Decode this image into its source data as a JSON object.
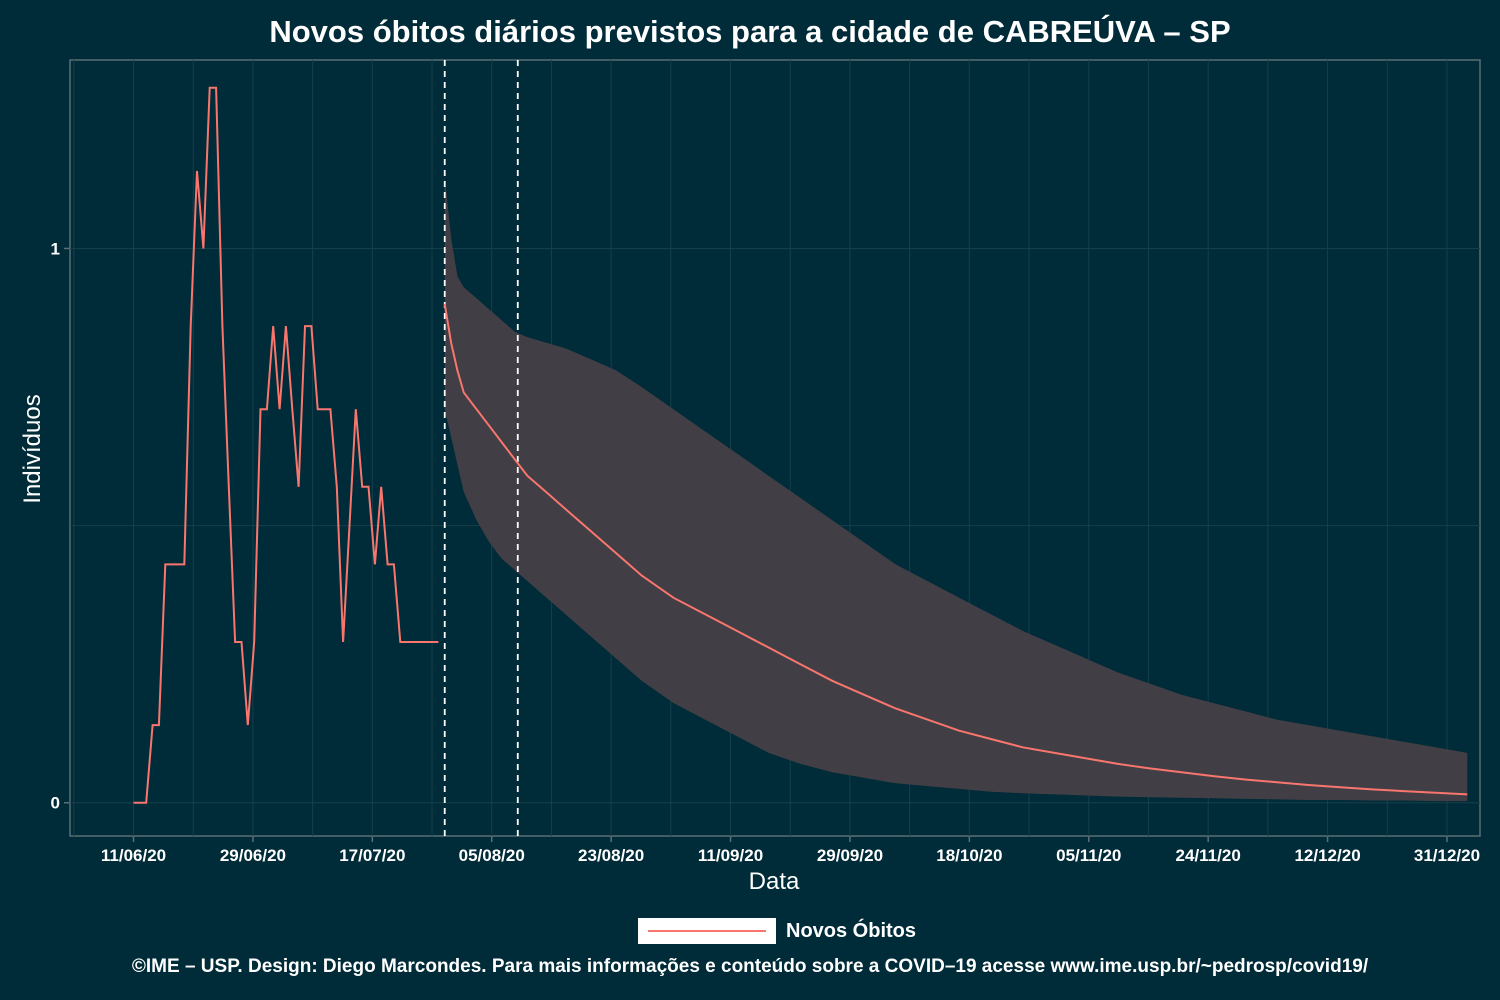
{
  "chart_data": {
    "type": "line",
    "title": "Novos óbitos diários previstos para a cidade de CABREÚVA – SP",
    "xlabel": "Data",
    "ylabel": "Indivíduos",
    "x_tick_labels": [
      "11/06/20",
      "29/06/20",
      "17/07/20",
      "05/08/20",
      "23/08/20",
      "11/09/20",
      "29/09/20",
      "18/10/20",
      "05/11/20",
      "24/11/20",
      "12/12/20",
      "31/12/20"
    ],
    "y_tick_labels": [
      "0",
      "1"
    ],
    "ylim": [
      -0.06,
      1.34
    ],
    "xlim_days": [
      -10,
      212
    ],
    "grid": true,
    "legend_position": "bottom",
    "vertical_dashed_lines_days": [
      49,
      60.5
    ],
    "series": [
      {
        "name": "Novos Óbitos",
        "color": "#f8766d",
        "observed": {
          "x_days": [
            0,
            2,
            3,
            4,
            5,
            6,
            7,
            8,
            9,
            10,
            11,
            12,
            13,
            14,
            15,
            16,
            17,
            18,
            19,
            20,
            21,
            22,
            23,
            24,
            25,
            26,
            27,
            28,
            29,
            30,
            31,
            32,
            33,
            34,
            35,
            36,
            37,
            38,
            39,
            40,
            41,
            42,
            43,
            44,
            45,
            46,
            47,
            48
          ],
          "y": [
            0,
            0,
            0.14,
            0.14,
            0.43,
            0.43,
            0.43,
            0.43,
            0.86,
            1.14,
            1.0,
            1.29,
            1.29,
            0.86,
            0.57,
            0.29,
            0.29,
            0.14,
            0.29,
            0.71,
            0.71,
            0.86,
            0.71,
            0.86,
            0.71,
            0.57,
            0.86,
            0.86,
            0.71,
            0.71,
            0.71,
            0.57,
            0.29,
            0.5,
            0.71,
            0.57,
            0.57,
            0.43,
            0.57,
            0.43,
            0.43,
            0.29,
            0.29,
            0.29,
            0.29,
            0.29,
            0.29,
            0.29
          ]
        },
        "forecast": {
          "x_days": [
            49,
            50,
            51,
            52,
            54,
            56,
            58,
            60,
            62,
            65,
            68,
            72,
            76,
            80,
            85,
            90,
            95,
            100,
            105,
            110,
            115,
            120,
            125,
            130,
            135,
            140,
            145,
            150,
            155,
            160,
            165,
            170,
            175,
            180,
            185,
            190,
            195,
            200,
            205,
            210
          ],
          "y": [
            0.9,
            0.83,
            0.78,
            0.74,
            0.71,
            0.68,
            0.65,
            0.62,
            0.59,
            0.56,
            0.53,
            0.49,
            0.45,
            0.41,
            0.37,
            0.34,
            0.31,
            0.28,
            0.25,
            0.22,
            0.195,
            0.17,
            0.15,
            0.13,
            0.115,
            0.1,
            0.09,
            0.08,
            0.07,
            0.062,
            0.055,
            0.048,
            0.042,
            0.037,
            0.032,
            0.028,
            0.024,
            0.021,
            0.018,
            0.015
          ],
          "upper": [
            1.13,
            1.02,
            0.95,
            0.93,
            0.91,
            0.89,
            0.87,
            0.85,
            0.84,
            0.83,
            0.82,
            0.8,
            0.78,
            0.75,
            0.71,
            0.67,
            0.63,
            0.59,
            0.55,
            0.51,
            0.47,
            0.43,
            0.4,
            0.37,
            0.34,
            0.31,
            0.285,
            0.26,
            0.235,
            0.215,
            0.195,
            0.18,
            0.165,
            0.15,
            0.14,
            0.13,
            0.12,
            0.11,
            0.1,
            0.09
          ],
          "lower": [
            0.71,
            0.66,
            0.61,
            0.56,
            0.51,
            0.47,
            0.44,
            0.42,
            0.4,
            0.37,
            0.34,
            0.3,
            0.26,
            0.22,
            0.18,
            0.15,
            0.12,
            0.09,
            0.07,
            0.055,
            0.045,
            0.035,
            0.03,
            0.025,
            0.02,
            0.017,
            0.015,
            0.013,
            0.011,
            0.01,
            0.009,
            0.008,
            0.007,
            0.006,
            0.005,
            0.005,
            0.004,
            0.004,
            0.003,
            0.003
          ]
        }
      }
    ]
  },
  "legend": {
    "label": "Novos Óbitos"
  },
  "caption": "©IME – USP. Design: Diego Marcondes. Para mais informações e conteúdo sobre a COVID–19 acesse www.ime.usp.br/~pedrosp/covid19/"
}
